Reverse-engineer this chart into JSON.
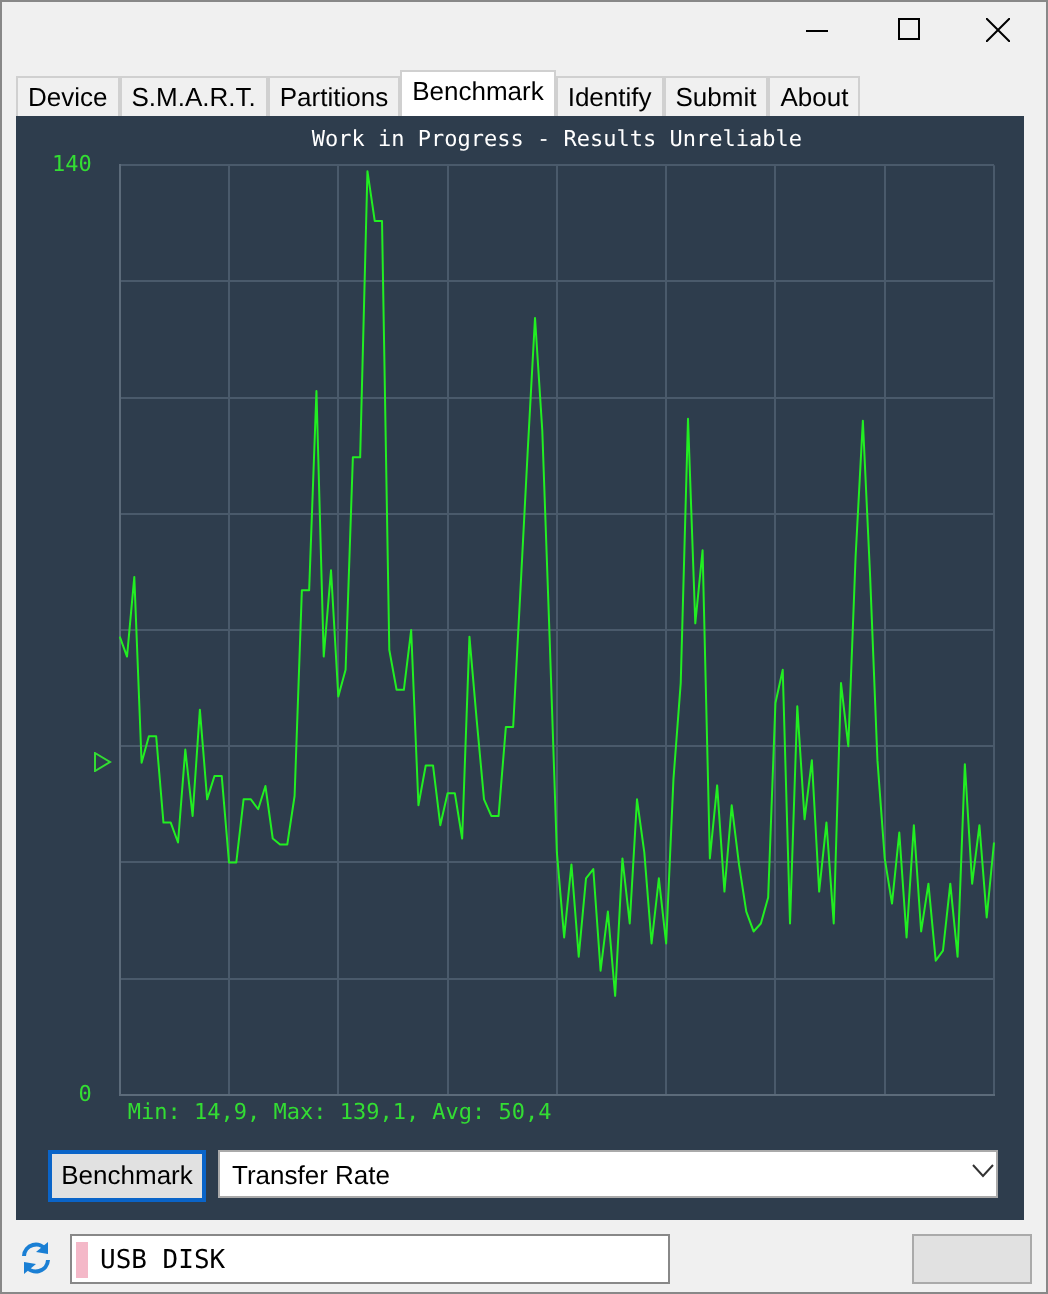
{
  "chart_data": {
    "type": "line",
    "title": "Work in Progress - Results Unreliable",
    "annotations": [
      "Min: 14,9, Max: 139,1, Avg: 50,4",
      "Device",
      "S.M.A.R.T.",
      "Partitions",
      "Benchmark",
      "Identify",
      "Submit",
      "About",
      "Benchmark",
      "Transfer Rate",
      "USB DISK"
    ],
    "categories": [
      null,
      null,
      null,
      null,
      null,
      null,
      null,
      null,
      null,
      null,
      null,
      null,
      null,
      null,
      null,
      null,
      null,
      null,
      null,
      null,
      null,
      null,
      null,
      null,
      null,
      null,
      null,
      null,
      null,
      null,
      null,
      null,
      null,
      null,
      null,
      null,
      null,
      null,
      null,
      null,
      null,
      null,
      null,
      null,
      null,
      null,
      null,
      null,
      null,
      null,
      null,
      null,
      null,
      null,
      null,
      null,
      null,
      null,
      null,
      null,
      null,
      null,
      null,
      null,
      null,
      null,
      null,
      null,
      null,
      null,
      null,
      null,
      null,
      null,
      null,
      null,
      null,
      null,
      null,
      null,
      null,
      null,
      null,
      null,
      null,
      null,
      null,
      null,
      null,
      null,
      null,
      null,
      null,
      null,
      null,
      null,
      null,
      null,
      null,
      null,
      null,
      null,
      null,
      null,
      null,
      null,
      null,
      null,
      null,
      null,
      null,
      null,
      null,
      null,
      null,
      null,
      null,
      null,
      null,
      null,
      null
    ],
    "values": [
      69,
      66,
      78,
      50,
      54,
      54,
      41,
      41,
      38,
      52,
      42,
      58,
      44.5,
      48,
      48,
      35,
      35,
      44.5,
      44.5,
      43,
      46.5,
      38.6,
      37.7,
      37.7,
      45,
      76,
      76,
      106,
      66,
      79,
      60,
      64,
      96,
      96,
      139.1,
      131.6,
      131.6,
      67,
      61,
      61,
      70,
      43.6,
      49.6,
      49.6,
      40.6,
      45.4,
      45.4,
      38.6,
      69,
      56.4,
      44.5,
      42,
      42,
      55.4,
      55.4,
      76,
      97,
      117,
      100,
      69,
      36.5,
      23.7,
      34.7,
      20.8,
      32.6,
      34,
      18.7,
      27.6,
      14.9,
      35.6,
      25.8,
      44.5,
      36.5,
      22.8,
      32.6,
      22.8,
      47.5,
      62,
      101.8,
      71,
      82,
      35.6,
      46.6,
      30.6,
      43.6,
      34.7,
      27.6,
      24.6,
      25.8,
      29.7,
      59,
      64,
      25.8,
      58.5,
      41.5,
      50.4,
      30.6,
      41,
      25.8,
      62,
      52.5,
      81,
      101.5,
      78,
      50.4,
      35.6,
      28.8,
      39.5,
      23.7,
      40.6,
      24.6,
      31.8,
      20.2,
      21.7,
      31.8,
      20.8,
      49.8,
      31.8,
      40.6,
      26.7,
      38
    ],
    "color": "#22ee22",
    "ylim": [
      0,
      140
    ],
    "yticks": [
      0,
      {
        "value": 17.5,
        "label": null
      },
      {
        "value": 35,
        "label": null
      },
      {
        "value": 52.5,
        "label": null
      },
      {
        "value": 70,
        "label": null
      },
      {
        "value": 87.5,
        "label": null
      },
      {
        "value": 105,
        "label": null
      },
      {
        "value": 122.5,
        "label": null
      },
      140
    ],
    "tick_labels": "y",
    "grid": true,
    "legend": false,
    "marker": "none"
  }
}
